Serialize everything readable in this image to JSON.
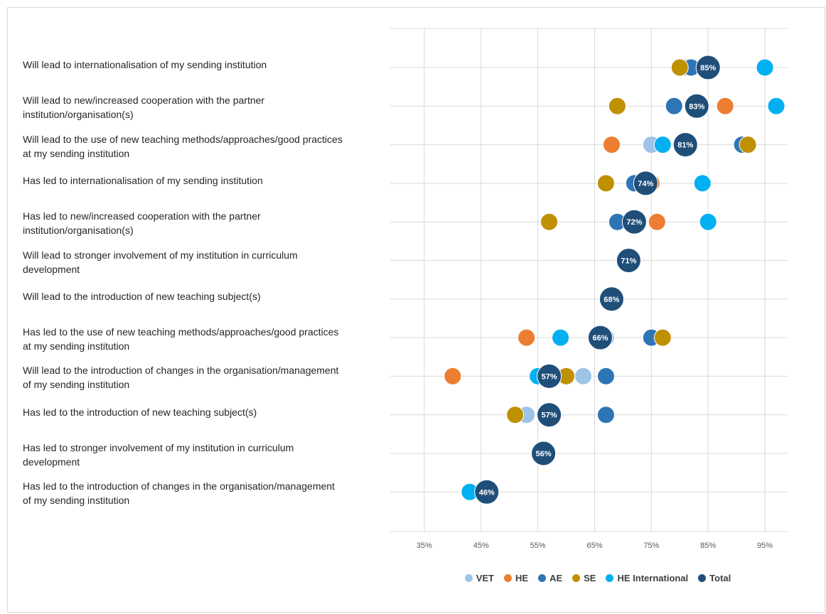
{
  "chart_data": {
    "type": "scatter",
    "title": "",
    "xlabel": "",
    "ylabel": "",
    "xlim": [
      29,
      99
    ],
    "x_ticks": [
      35,
      45,
      55,
      65,
      75,
      85,
      95
    ],
    "x_tick_labels": [
      "35%",
      "45%",
      "55%",
      "65%",
      "75%",
      "85%",
      "95%"
    ],
    "legend_position": "bottom",
    "categories": [
      "Will lead to internationalisation of my sending institution",
      "Will lead to new/increased cooperation with the partner\ninstitution/organisation(s)",
      "Will lead to the use of new teaching methods/approaches/good practices\nat my sending institution",
      "Has led to internationalisation of my sending institution",
      "Has led to new/increased cooperation with the partner\ninstitution/organisation(s)",
      "Will lead to stronger involvement of my institution in curriculum\ndevelopment",
      "Will lead to the introduction of new teaching subject(s)",
      "Has led to the use of new teaching methods/approaches/good practices\nat my sending institution",
      "Will lead to the introduction of changes in the organisation/management\nof my sending institution",
      "Has led to the introduction of new teaching subject(s)",
      "Has led to stronger involvement of my institution in curriculum\ndevelopment",
      "Has led to the introduction of changes in the organisation/management\nof my sending institution"
    ],
    "series": [
      {
        "name": "VET",
        "color": "#9dc3e6",
        "values": [
          81,
          83,
          75,
          75,
          72,
          71,
          68,
          67,
          63,
          53,
          56,
          46
        ]
      },
      {
        "name": "HE",
        "color": "#ed7d31",
        "values": [
          82,
          88,
          68,
          75,
          76,
          71,
          68,
          53,
          40,
          57,
          56,
          46
        ]
      },
      {
        "name": "AE",
        "color": "#2e75b6",
        "values": [
          82,
          79,
          91,
          72,
          69,
          71,
          68,
          75,
          67,
          67,
          56,
          46
        ]
      },
      {
        "name": "SE",
        "color": "#bf9000",
        "values": [
          80,
          69,
          92,
          67,
          57,
          71,
          68,
          77,
          60,
          51,
          56,
          46
        ]
      },
      {
        "name": "HE International",
        "color": "#00b0f0",
        "values": [
          95,
          97,
          77,
          84,
          85,
          71,
          68,
          59,
          55,
          57,
          56,
          43
        ]
      },
      {
        "name": "Total",
        "color": "#1f4e79",
        "values": [
          85,
          83,
          81,
          74,
          72,
          71,
          68,
          66,
          57,
          57,
          56,
          46
        ],
        "data_labels": [
          "85%",
          "83%",
          "81%",
          "74%",
          "72%",
          "71%",
          "68%",
          "66%",
          "57%",
          "57%",
          "56%",
          "46%"
        ]
      }
    ]
  }
}
